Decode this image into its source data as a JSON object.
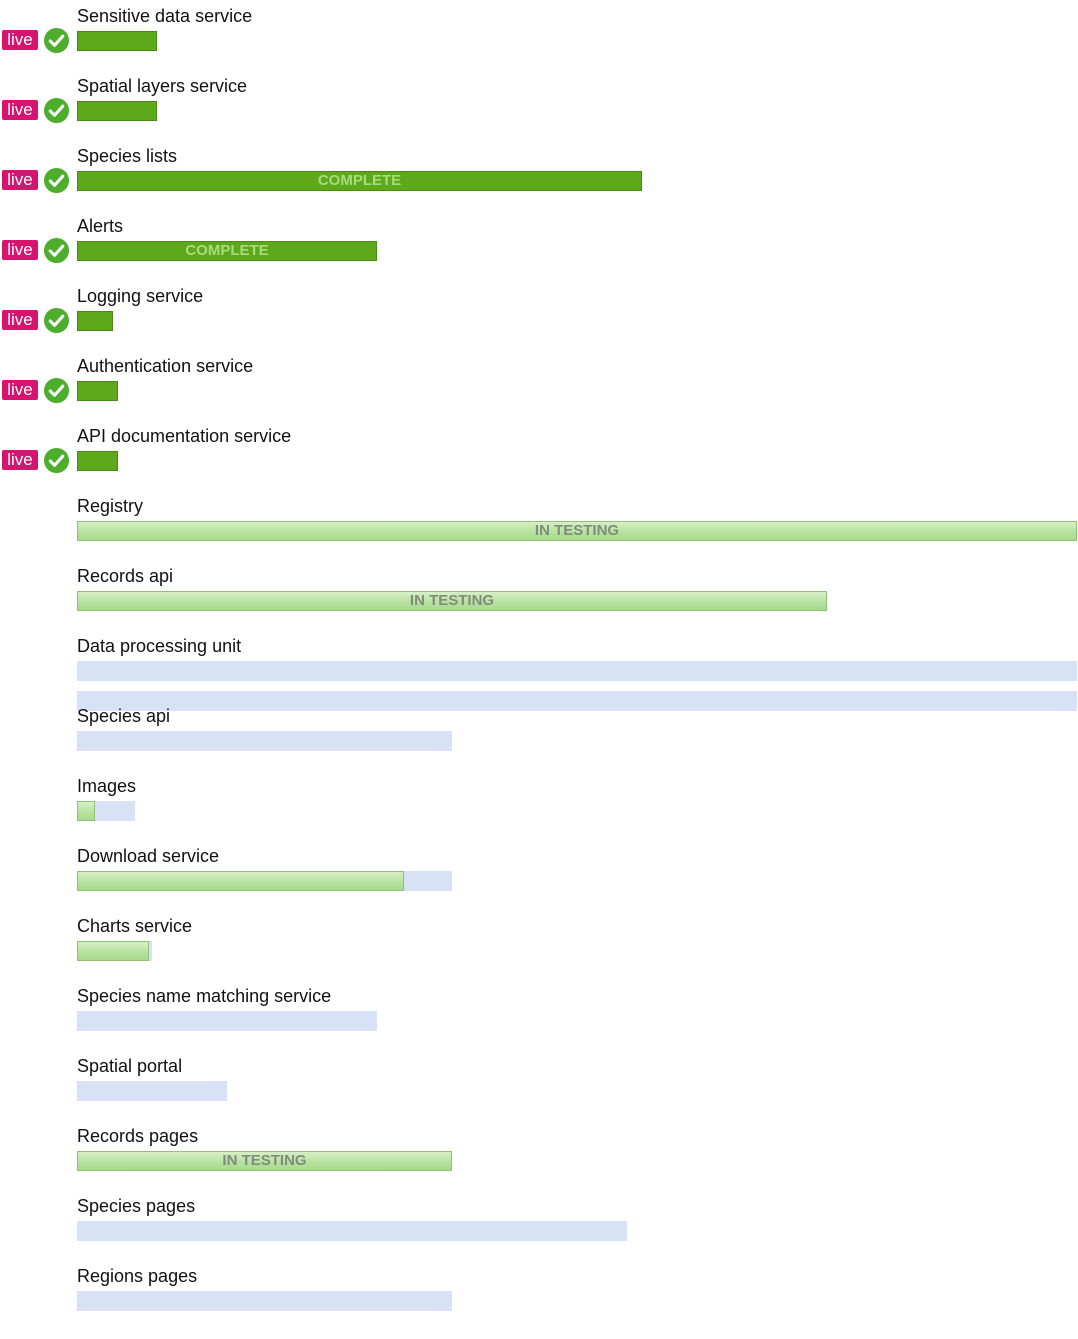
{
  "legend": {
    "live_label": "live",
    "status_labels": {
      "complete": "COMPLETE",
      "testing": "IN TESTING"
    }
  },
  "colors": {
    "live_badge": "#d6136f",
    "check_circle": "#4cae2c",
    "complete_bar": "#5ea91b",
    "testing_bar": "#b8e2a0",
    "planned_track": "#d7e2f6"
  },
  "chart_data": {
    "type": "bar",
    "orientation": "horizontal",
    "title": "",
    "xlabel": "",
    "ylabel": "",
    "value_scale": "fraction of full width",
    "services": [
      {
        "name": "Sensitive data service",
        "live": true,
        "status": "complete",
        "progress": 0.08,
        "planned": null,
        "extra_track": null,
        "bar_text": ""
      },
      {
        "name": "Spatial layers service",
        "live": true,
        "status": "complete",
        "progress": 0.08,
        "planned": null,
        "extra_track": null,
        "bar_text": ""
      },
      {
        "name": "Species lists",
        "live": true,
        "status": "complete",
        "progress": 0.565,
        "planned": null,
        "extra_track": null,
        "bar_text": "COMPLETE"
      },
      {
        "name": "Alerts",
        "live": true,
        "status": "complete",
        "progress": 0.3,
        "planned": null,
        "extra_track": null,
        "bar_text": "COMPLETE"
      },
      {
        "name": "Logging service",
        "live": true,
        "status": "complete",
        "progress": 0.036,
        "planned": null,
        "extra_track": null,
        "bar_text": ""
      },
      {
        "name": "Authentication service",
        "live": true,
        "status": "complete",
        "progress": 0.041,
        "planned": null,
        "extra_track": null,
        "bar_text": ""
      },
      {
        "name": "API documentation service",
        "live": true,
        "status": "complete",
        "progress": 0.041,
        "planned": null,
        "extra_track": null,
        "bar_text": ""
      },
      {
        "name": "Registry",
        "live": false,
        "status": "testing",
        "progress": 1.0,
        "planned": null,
        "extra_track": null,
        "bar_text": "IN TESTING"
      },
      {
        "name": "Records api",
        "live": false,
        "status": "testing",
        "progress": 0.75,
        "planned": null,
        "extra_track": null,
        "bar_text": "IN TESTING"
      },
      {
        "name": "Data processing unit",
        "live": false,
        "status": "planned",
        "progress": 0,
        "planned": 1.0,
        "extra_track": 1.0,
        "bar_text": ""
      },
      {
        "name": "Species api",
        "live": false,
        "status": "planned",
        "progress": 0,
        "planned": 0.375,
        "extra_track": null,
        "bar_text": ""
      },
      {
        "name": "Images",
        "live": false,
        "status": "testing",
        "progress": 0.018,
        "planned": 0.058,
        "extra_track": null,
        "bar_text": ""
      },
      {
        "name": "Download service",
        "live": false,
        "status": "testing",
        "progress": 0.327,
        "planned": 0.375,
        "extra_track": null,
        "bar_text": ""
      },
      {
        "name": "Charts service",
        "live": false,
        "status": "testing",
        "progress": 0.072,
        "planned": 0.075,
        "extra_track": null,
        "bar_text": ""
      },
      {
        "name": "Species name matching service",
        "live": false,
        "status": "planned",
        "progress": 0,
        "planned": 0.3,
        "extra_track": null,
        "bar_text": ""
      },
      {
        "name": "Spatial portal",
        "live": false,
        "status": "planned",
        "progress": 0,
        "planned": 0.15,
        "extra_track": null,
        "bar_text": ""
      },
      {
        "name": "Records pages",
        "live": false,
        "status": "testing",
        "progress": 0.375,
        "planned": null,
        "extra_track": null,
        "bar_text": "IN TESTING"
      },
      {
        "name": "Species pages",
        "live": false,
        "status": "planned",
        "progress": 0,
        "planned": 0.55,
        "extra_track": null,
        "bar_text": ""
      },
      {
        "name": "Regions pages",
        "live": false,
        "status": "planned",
        "progress": 0,
        "planned": 0.375,
        "extra_track": null,
        "bar_text": ""
      }
    ]
  }
}
